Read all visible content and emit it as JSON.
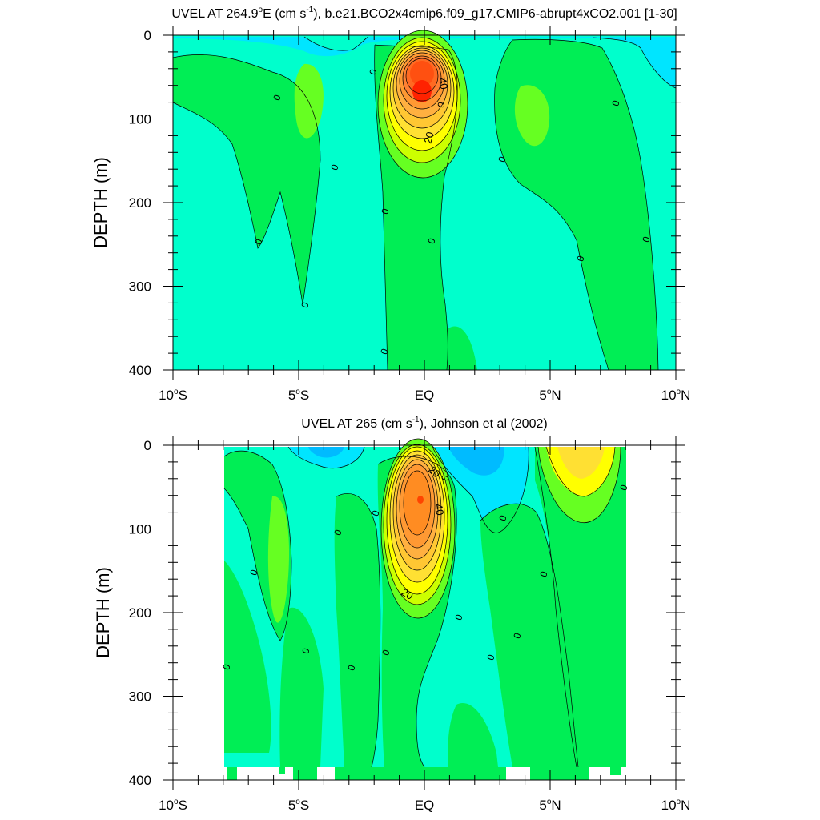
{
  "chart_data": [
    {
      "type": "contour",
      "title_main": "UVEL AT 264.9",
      "title_deg": "o",
      "title_east": "E (cm s",
      "title_exp": "-1",
      "title_rest": "), b.e21.BCO2x4cmip6.f09_g17.CMIP6-abrupt4xCO2.001 [1-30]",
      "ylabel": "DEPTH (m)",
      "y_ticks": [
        "0",
        "100",
        "200",
        "300",
        "400"
      ],
      "y_range": [
        0,
        400
      ],
      "x_range": [
        -10,
        10
      ],
      "x_ticks": [
        {
          "num": "10",
          "hemi": "S"
        },
        {
          "num": "5",
          "hemi": "S"
        },
        {
          "num": "EQ",
          "hemi": ""
        },
        {
          "num": "5",
          "hemi": "N"
        },
        {
          "num": "10",
          "hemi": "N"
        }
      ],
      "contour_labels": [
        "40",
        "20",
        "0",
        "0",
        "0",
        "0",
        "0",
        "0",
        "0",
        "0",
        "0",
        "0",
        "0",
        "0",
        "0"
      ],
      "core": {
        "lat": -0.1,
        "depth": 68,
        "max_speed": 60
      },
      "colors": {
        "neg": "#00e5ff",
        "zero": "#00ffcc",
        "pos": "#00ee55",
        "green2": "#66ff22",
        "yellow": "#ffff00",
        "orange": "#ff9922",
        "red": "#ff2200"
      }
    },
    {
      "type": "contour",
      "title_main": "UVEL AT 265 (cm s",
      "title_exp": "-1",
      "title_rest": "), Johnson et al (2002)",
      "ylabel": "DEPTH (m)",
      "y_ticks": [
        "0",
        "100",
        "200",
        "300",
        "400"
      ],
      "y_range": [
        0,
        400
      ],
      "x_range": [
        -10,
        10
      ],
      "x_ticks": [
        {
          "num": "10",
          "hemi": "S"
        },
        {
          "num": "5",
          "hemi": "S"
        },
        {
          "num": "EQ",
          "hemi": ""
        },
        {
          "num": "5",
          "hemi": "N"
        },
        {
          "num": "10",
          "hemi": "N"
        }
      ],
      "contour_labels": [
        "20",
        "40",
        "20",
        "0",
        "0",
        "0",
        "0",
        "0",
        "0",
        "0",
        "0",
        "0",
        "0",
        "0",
        "0",
        "0",
        "0"
      ],
      "core": {
        "lat": -0.1,
        "depth": 65,
        "max_speed": 50
      },
      "data_extent": {
        "lat": [
          -8,
          8
        ]
      },
      "colors": {
        "neg": "#00e5ff",
        "zero": "#00ffcc",
        "pos": "#00ee55",
        "green2": "#66ff22",
        "yellow": "#ffff00",
        "orange": "#ff9922",
        "red": "#ff4400"
      }
    }
  ]
}
